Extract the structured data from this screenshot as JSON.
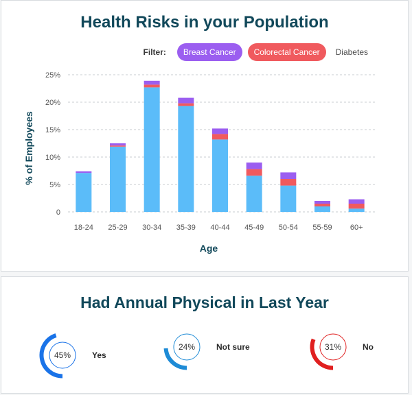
{
  "chart_card": {
    "title": "Health Risks in your Population",
    "filter_label": "Filter:",
    "filters": [
      {
        "label": "Breast Cancer",
        "color": "#9b5ef0",
        "active": true
      },
      {
        "label": "Colorectal Cancer",
        "color": "#f05a5e",
        "active": true
      },
      {
        "label": "Diabetes",
        "color": "#5bbcf9",
        "active": false
      }
    ]
  },
  "chart_data": {
    "type": "bar",
    "stacked": true,
    "title": "Health Risks in your Population",
    "xlabel": "Age",
    "ylabel": "% of Employees",
    "categories": [
      "18-24",
      "25-29",
      "30-34",
      "35-39",
      "40-44",
      "45-49",
      "50-54",
      "55-59",
      "60+"
    ],
    "series": [
      {
        "name": "Diabetes",
        "color": "#5bbcf9",
        "values": [
          7.1,
          11.9,
          22.7,
          19.3,
          13.2,
          6.6,
          4.8,
          1.0,
          0.6
        ]
      },
      {
        "name": "Colorectal Cancer",
        "color": "#f05a5e",
        "values": [
          0.0,
          0.2,
          0.5,
          0.5,
          1.0,
          1.2,
          1.2,
          0.5,
          0.9
        ]
      },
      {
        "name": "Breast Cancer",
        "color": "#9b5ef0",
        "values": [
          0.3,
          0.4,
          0.7,
          1.0,
          1.0,
          1.2,
          1.2,
          0.5,
          0.8
        ]
      }
    ],
    "ylim": [
      0,
      25
    ],
    "yticks": [
      "0",
      "5%",
      "10%",
      "15%",
      "20%",
      "25%"
    ],
    "grid": true,
    "grid_color": "#c8cdd2",
    "axis_label_color": "#11485a"
  },
  "physical_card": {
    "title": "Had Annual Physical in Last Year",
    "items": [
      {
        "label": "Yes",
        "percent_text": "45%",
        "value": 45,
        "color": "#1a73e8"
      },
      {
        "label": "Not sure",
        "percent_text": "24%",
        "value": 24,
        "color": "#1e8bd6"
      },
      {
        "label": "No",
        "percent_text": "31%",
        "value": 31,
        "color": "#e02020"
      }
    ]
  }
}
